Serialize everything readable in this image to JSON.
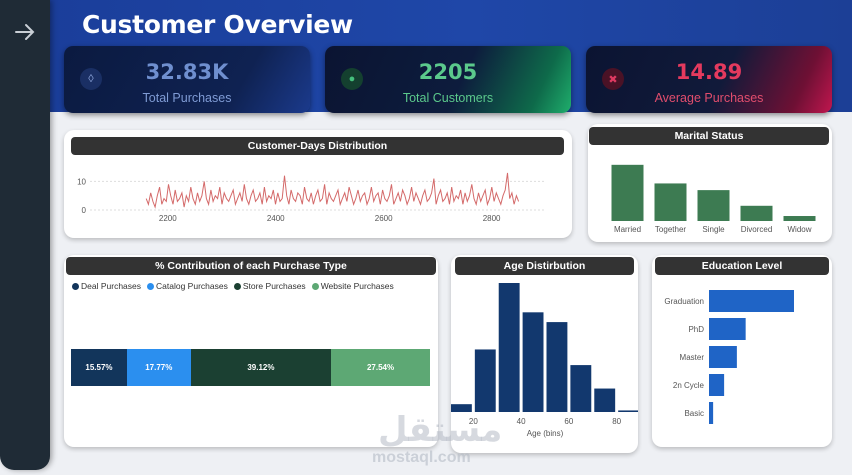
{
  "page": {
    "title": "Customer Overview"
  },
  "kpis": [
    {
      "value": "32.83K",
      "label": "Total Purchases",
      "icon": "bag-icon",
      "color": "#6f8fcf"
    },
    {
      "value": "2205",
      "label": "Total Customers",
      "icon": "globe-icon",
      "color": "#5bc98c"
    },
    {
      "value": "14.89",
      "label": "Average Purchases",
      "icon": "x-icon",
      "color": "#e43a5e"
    }
  ],
  "watermark": {
    "arabic": "مستقل",
    "latin": "mostaql.com"
  },
  "chart_data": [
    {
      "type": "line",
      "title": "Customer-Days Distribution",
      "x_range": [
        2130,
        2860
      ],
      "x_ticks": [
        2200,
        2400,
        2600,
        2800
      ],
      "y_ticks": [
        0,
        10
      ],
      "ylim": [
        0,
        14
      ],
      "color": "#d46a6a",
      "series": [
        {
          "values": [
            4,
            2,
            6,
            3,
            1,
            5,
            8,
            2,
            4,
            3,
            9,
            5,
            2,
            7,
            3,
            4,
            6,
            1,
            5,
            3,
            8,
            4,
            2,
            6,
            3,
            5,
            10,
            4,
            2,
            7,
            3,
            5,
            4,
            8,
            2,
            6,
            4,
            3,
            5,
            7,
            2,
            4,
            6,
            3,
            9,
            4,
            2,
            5,
            7,
            3,
            4,
            6,
            2,
            8,
            3,
            5,
            4,
            7,
            2,
            6,
            3,
            4,
            12,
            5,
            2,
            7,
            4,
            3,
            6,
            5,
            2,
            8,
            4,
            3,
            6,
            2,
            5,
            7,
            3,
            4,
            9,
            2,
            6,
            4,
            3,
            5,
            7,
            2,
            4,
            6,
            3,
            8,
            5,
            2,
            4,
            7,
            3,
            5,
            6,
            2,
            4,
            8,
            3,
            5,
            6,
            2,
            7,
            4,
            3,
            5,
            9,
            2,
            4,
            6,
            3,
            7,
            5,
            2,
            4,
            8,
            3,
            6,
            4,
            2,
            5,
            7,
            3,
            4,
            6,
            11,
            2,
            5,
            7,
            3,
            4,
            6,
            2,
            8,
            3,
            5,
            4,
            7,
            2,
            6,
            3,
            5,
            9,
            4,
            2,
            6,
            3,
            5,
            7,
            2,
            4,
            8,
            3,
            6,
            4,
            2,
            5,
            7,
            13,
            4,
            6,
            2,
            5,
            3
          ]
        }
      ]
    },
    {
      "type": "bar",
      "title": "Marital Status",
      "categories": [
        "Married",
        "Together",
        "Single",
        "Divorced",
        "Widow"
      ],
      "values": [
        857,
        573,
        471,
        232,
        76
      ],
      "color": "#3d7b52"
    },
    {
      "type": "bar",
      "title": "% Contribution of each Purchase Type",
      "stacked": true,
      "legend": "top-left",
      "categories": [
        "Deal Purchases",
        "Catalog Purchases",
        "Store Purchases",
        "Website Purchases"
      ],
      "values": [
        15.57,
        17.77,
        39.12,
        27.54
      ],
      "labels": [
        "15.57%",
        "17.77%",
        "39.12%",
        "27.54%"
      ],
      "colors": [
        "#12355b",
        "#2b8fef",
        "#1b4032",
        "#5da874"
      ]
    },
    {
      "type": "bar",
      "title": "Age Distirbution",
      "xlabel": "Age (bins)",
      "x_ticks": [
        20,
        40,
        60,
        80
      ],
      "bins": [
        15,
        25,
        35,
        45,
        55,
        65,
        75,
        85
      ],
      "values": [
        40,
        320,
        660,
        510,
        460,
        240,
        120,
        8
      ],
      "color": "#12386e"
    },
    {
      "type": "bar",
      "orientation": "horizontal",
      "title": "Education Level",
      "categories": [
        "Graduation",
        "PhD",
        "Master",
        "2n Cycle",
        "Basic"
      ],
      "values": [
        1113,
        480,
        365,
        198,
        54
      ],
      "color": "#1f64c6"
    }
  ]
}
